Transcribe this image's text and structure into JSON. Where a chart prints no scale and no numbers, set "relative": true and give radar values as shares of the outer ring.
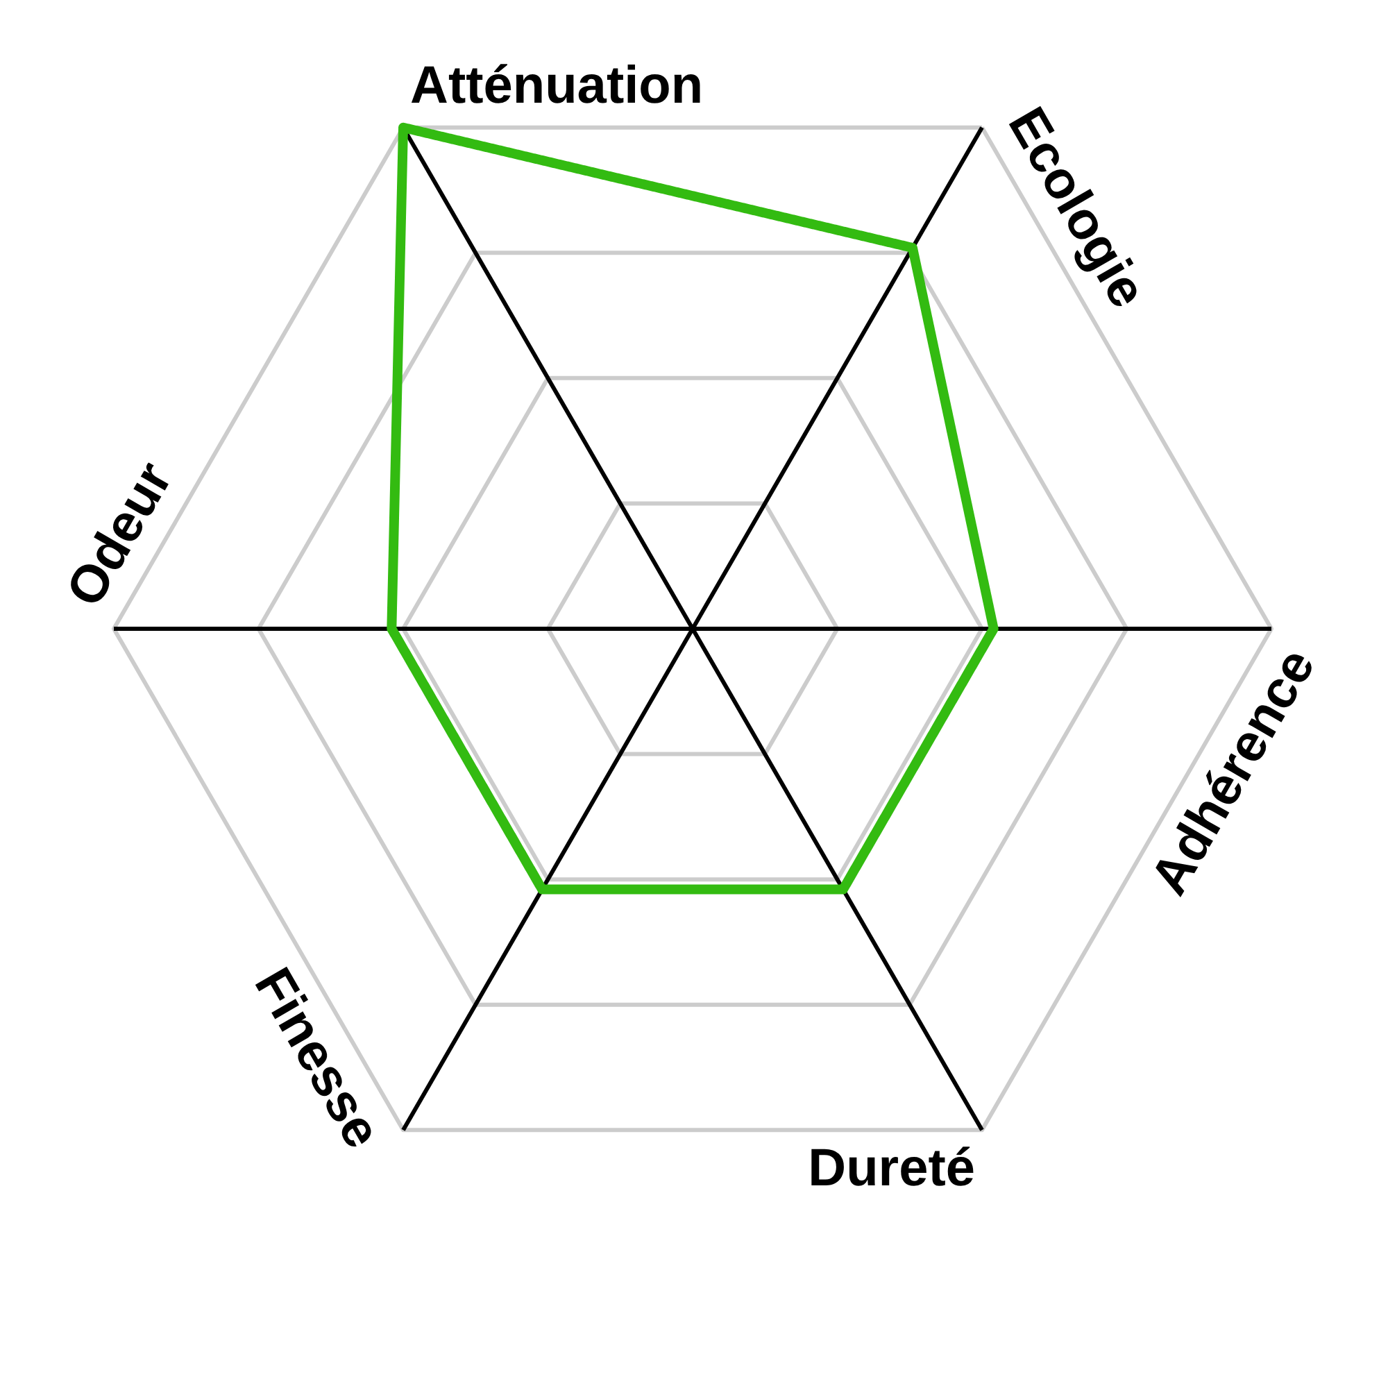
{
  "chart_data": {
    "type": "radar",
    "relative": true,
    "grid": true,
    "categories": [
      "Ecologie",
      "Adhérence",
      "Dureté",
      "Finesse",
      "Odeur",
      "Atténuation"
    ],
    "series": [
      {
        "color": "#33bb11",
        "values": [
          0.76,
          0.52,
          0.52,
          0.52,
          0.52,
          1.0
        ]
      }
    ]
  }
}
